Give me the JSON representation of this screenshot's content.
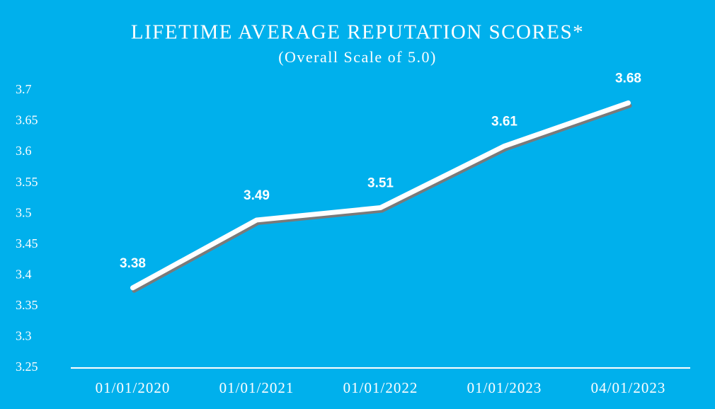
{
  "chart_data": {
    "type": "line",
    "title": "LIFETIME AVERAGE REPUTATION SCORES*",
    "subtitle": "(Overall Scale of 5.0)",
    "categories": [
      "01/01/2020",
      "01/01/2021",
      "01/01/2022",
      "01/01/2023",
      "04/01/2023"
    ],
    "values": [
      3.38,
      3.49,
      3.51,
      3.61,
      3.68
    ],
    "color": "#ffffff",
    "ylim": [
      3.25,
      3.7
    ],
    "yticks": [
      3.25,
      3.3,
      3.35,
      3.4,
      3.45,
      3.5,
      3.55,
      3.6,
      3.65,
      3.7
    ],
    "grid": false
  }
}
